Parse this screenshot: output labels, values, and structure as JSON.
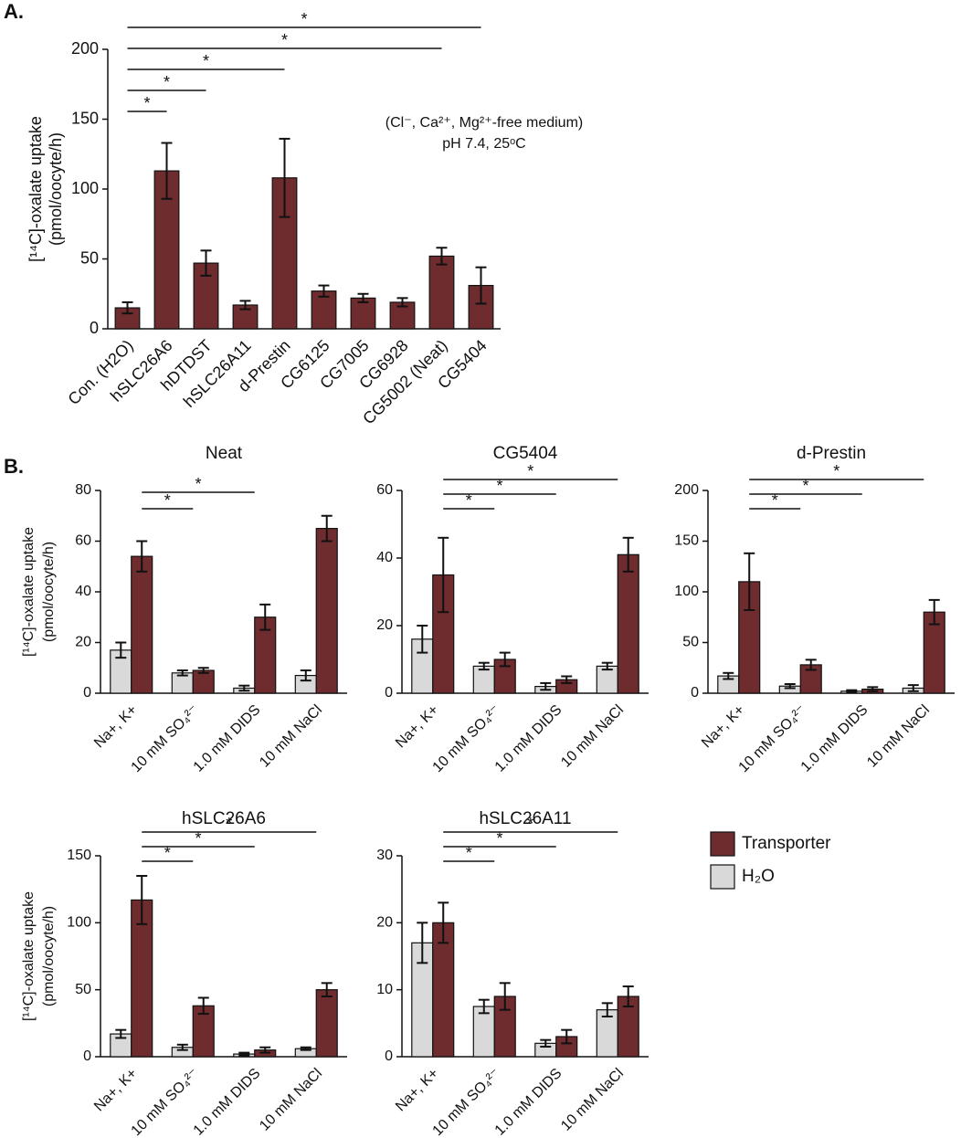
{
  "panels": [
    "A.",
    "B."
  ],
  "chart_data": [
    {
      "type": "bar",
      "ylabel": [
        "[¹⁴C]-oxalate uptake",
        "(pmol/oocyte/h)"
      ],
      "annotations": [
        "(Cl⁻, Ca²⁺, Mg²⁺-free medium)",
        "pH 7.4, 25ᵒC"
      ],
      "categories": [
        "Con. (H2O)",
        "hSLC26A6",
        "hDTDST",
        "hSLC26A11",
        "d-Prestin",
        "CG6125",
        "CG7005",
        "CG6928",
        "CG5002 (Neat)",
        "CG5404"
      ],
      "values": [
        15,
        113,
        47,
        17,
        108,
        27,
        22,
        19,
        52,
        31
      ],
      "errors": [
        4,
        20,
        9,
        3,
        28,
        4,
        3,
        3,
        6,
        13
      ],
      "color": "#6e2c2e",
      "ylim": [
        0,
        200
      ],
      "yticks": [
        0,
        50,
        100,
        150,
        200
      ],
      "significance": [
        {
          "from": 0,
          "to": 1,
          "label": "*"
        },
        {
          "from": 0,
          "to": 2,
          "label": "*"
        },
        {
          "from": 0,
          "to": 4,
          "label": "*"
        },
        {
          "from": 0,
          "to": 8,
          "label": "*"
        },
        {
          "from": 0,
          "to": 9,
          "label": "*"
        }
      ]
    },
    {
      "type": "bar",
      "title": "Neat",
      "ylabel": [
        "[¹⁴C]-oxalate uptake",
        "(pmol/oocyte/h)"
      ],
      "categories": [
        "Na+, K+",
        "10 mM SO₄²⁻",
        "1.0 mM DIDS",
        "10 mM NaCl"
      ],
      "series": [
        {
          "name": "H₂O",
          "color": "#d9d9d9",
          "values": [
            17,
            8,
            2,
            7
          ],
          "errors": [
            3,
            1,
            1,
            2
          ]
        },
        {
          "name": "Transporter",
          "color": "#6e2c2e",
          "values": [
            54,
            9,
            30,
            65
          ],
          "errors": [
            6,
            1,
            5,
            5
          ]
        }
      ],
      "ylim": [
        0,
        80
      ],
      "yticks": [
        0,
        20,
        40,
        60,
        80
      ],
      "significance": [
        {
          "from": 0,
          "to": 1,
          "label": "*"
        },
        {
          "from": 0,
          "to": 2,
          "label": "*"
        }
      ]
    },
    {
      "type": "bar",
      "title": "CG5404",
      "categories": [
        "Na+, K+",
        "10 mM SO₄²⁻",
        "1.0 mM DIDS",
        "10 mM NaCl"
      ],
      "series": [
        {
          "name": "H₂O",
          "color": "#d9d9d9",
          "values": [
            16,
            8,
            2,
            8
          ],
          "errors": [
            4,
            1,
            1,
            1
          ]
        },
        {
          "name": "Transporter",
          "color": "#6e2c2e",
          "values": [
            35,
            10,
            4,
            41
          ],
          "errors": [
            11,
            2,
            1,
            5
          ]
        }
      ],
      "ylim": [
        0,
        60
      ],
      "yticks": [
        0,
        20,
        40,
        60
      ],
      "significance": [
        {
          "from": 0,
          "to": 1,
          "label": "*"
        },
        {
          "from": 0,
          "to": 2,
          "label": "*"
        },
        {
          "from": 0,
          "to": 3,
          "label": "*"
        }
      ]
    },
    {
      "type": "bar",
      "title": "d-Prestin",
      "categories": [
        "Na+, K+",
        "10 mM SO₄²⁻",
        "1.0 mM DIDS",
        "10 mM NaCl"
      ],
      "series": [
        {
          "name": "H₂O",
          "color": "#d9d9d9",
          "values": [
            17,
            7,
            2,
            5
          ],
          "errors": [
            3,
            2,
            1,
            3
          ]
        },
        {
          "name": "Transporter",
          "color": "#6e2c2e",
          "values": [
            110,
            28,
            4,
            80
          ],
          "errors": [
            28,
            5,
            2,
            12
          ]
        }
      ],
      "ylim": [
        0,
        200
      ],
      "yticks": [
        0,
        50,
        100,
        150,
        200
      ],
      "significance": [
        {
          "from": 0,
          "to": 1,
          "label": "*"
        },
        {
          "from": 0,
          "to": 2,
          "label": "*"
        },
        {
          "from": 0,
          "to": 3,
          "label": "*"
        }
      ]
    },
    {
      "type": "bar",
      "title": "hSLC26A6",
      "ylabel": [
        "[¹⁴C]-oxalate uptake",
        "(pmol/oocyte/h)"
      ],
      "categories": [
        "Na+, K+",
        "10 mM SO₄²⁻",
        "1.0 mM DIDS",
        "10 mM NaCl"
      ],
      "series": [
        {
          "name": "H₂O",
          "color": "#d9d9d9",
          "values": [
            17,
            7,
            2,
            6
          ],
          "errors": [
            3,
            2,
            1,
            1
          ]
        },
        {
          "name": "Transporter",
          "color": "#6e2c2e",
          "values": [
            117,
            38,
            5,
            50
          ],
          "errors": [
            18,
            6,
            2,
            5
          ]
        }
      ],
      "ylim": [
        0,
        150
      ],
      "yticks": [
        0,
        50,
        100,
        150
      ],
      "significance": [
        {
          "from": 0,
          "to": 1,
          "label": "*"
        },
        {
          "from": 0,
          "to": 2,
          "label": "*"
        },
        {
          "from": 0,
          "to": 3,
          "label": "*"
        }
      ]
    },
    {
      "type": "bar",
      "title": "hSLC26A11",
      "categories": [
        "Na+, K+",
        "10 mM SO₄²⁻",
        "1.0 mM DIDS",
        "10 mM NaCl"
      ],
      "series": [
        {
          "name": "H₂O",
          "color": "#d9d9d9",
          "values": [
            17,
            7.5,
            2,
            7
          ],
          "errors": [
            3,
            1,
            0.5,
            1
          ]
        },
        {
          "name": "Transporter",
          "color": "#6e2c2e",
          "values": [
            20,
            9,
            3,
            9
          ],
          "errors": [
            3,
            2,
            1,
            1.5
          ]
        }
      ],
      "ylim": [
        0,
        30
      ],
      "yticks": [
        0,
        10,
        20,
        30
      ],
      "legend": "right",
      "significance": [
        {
          "from": 0,
          "to": 1,
          "label": "*"
        },
        {
          "from": 0,
          "to": 2,
          "label": "*"
        },
        {
          "from": 0,
          "to": 3,
          "label": "*"
        }
      ]
    }
  ]
}
